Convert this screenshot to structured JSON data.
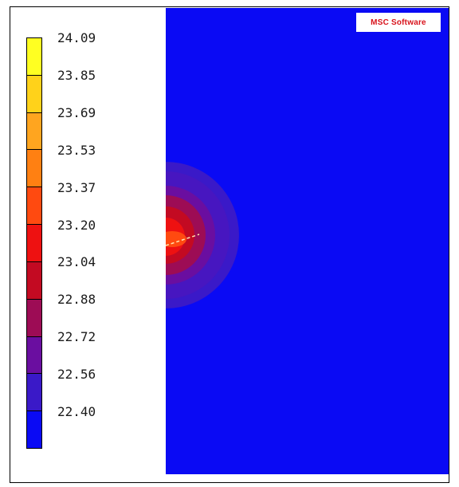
{
  "legend": {
    "labels": [
      "24.09",
      "23.85",
      "23.69",
      "23.53",
      "23.37",
      "23.20",
      "23.04",
      "22.88",
      "22.72",
      "22.56",
      "22.40"
    ],
    "colors": [
      "#ffff22",
      "#ffd21a",
      "#ffa51f",
      "#ff8012",
      "#ff4a10",
      "#ee1111",
      "#c30a22",
      "#9d0c55",
      "#6a0ea0",
      "#3a19c8",
      "#0a0af4"
    ]
  },
  "plot": {
    "background_color": "#0a0af4"
  },
  "logo": {
    "text": "MSC Software"
  }
}
